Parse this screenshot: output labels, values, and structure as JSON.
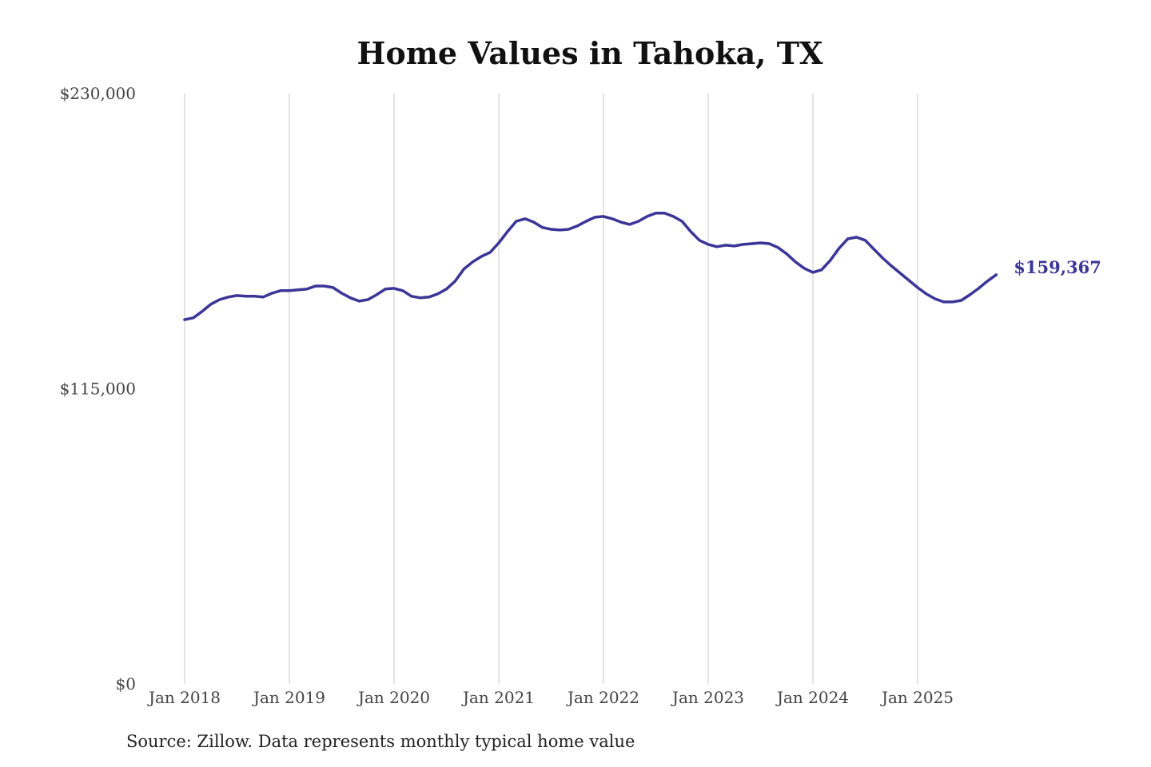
{
  "chart_data": {
    "type": "line",
    "title": "Home Values in Tahoka, TX",
    "source": "Source: Zillow. Data represents monthly typical home value",
    "xlabel": "",
    "ylabel": "",
    "ylim": [
      0,
      230000
    ],
    "y_ticks": [
      0,
      115000,
      230000
    ],
    "y_tick_labels": [
      "$0",
      "$115,000",
      "$230,000"
    ],
    "x_tick_labels": [
      "Jan 2018",
      "Jan 2019",
      "Jan 2020",
      "Jan 2021",
      "Jan 2022",
      "Jan 2023",
      "Jan 2024",
      "Jan 2025"
    ],
    "x_start": "Jan 2018",
    "x_interval": "monthly",
    "grid": "vertical",
    "line_color": "#3b3597",
    "end_label": "$159,367",
    "series": [
      {
        "name": "Typical home value",
        "values": [
          141900,
          142600,
          145100,
          147900,
          149700,
          150700,
          151300,
          151000,
          151000,
          150700,
          152200,
          153200,
          153200,
          153500,
          153800,
          155000,
          155000,
          154400,
          152200,
          150400,
          149100,
          149700,
          151600,
          153800,
          154100,
          153200,
          151000,
          150400,
          150700,
          151900,
          153800,
          156900,
          161600,
          164400,
          166500,
          168100,
          171800,
          176200,
          180200,
          181200,
          179900,
          177800,
          177100,
          176800,
          177100,
          178400,
          180200,
          181800,
          182100,
          181200,
          179900,
          179000,
          180200,
          182100,
          183400,
          183400,
          182100,
          180200,
          176200,
          172800,
          171200,
          170300,
          170900,
          170600,
          171200,
          171500,
          171800,
          171500,
          170000,
          167500,
          164400,
          161900,
          160300,
          161300,
          165000,
          169700,
          173400,
          174000,
          172800,
          169300,
          165900,
          162800,
          160000,
          157200,
          154400,
          151900,
          150000,
          148800,
          148800,
          149400,
          151600,
          154100,
          156900,
          159367
        ]
      }
    ]
  }
}
